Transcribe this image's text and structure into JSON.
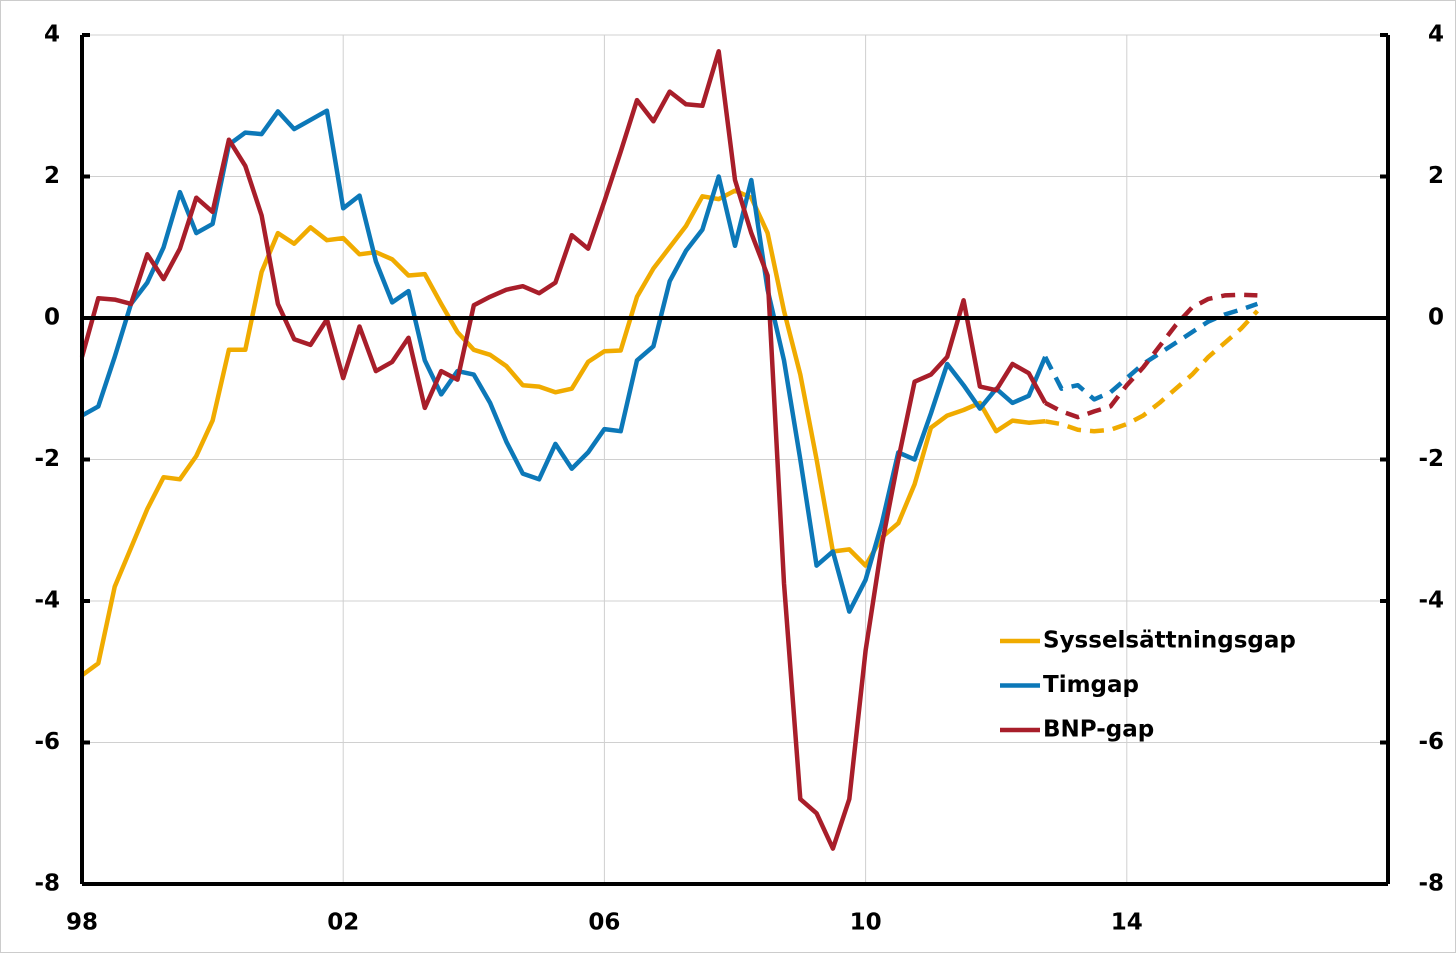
{
  "chart_data": {
    "type": "line",
    "x": [
      1998,
      1998.25,
      1998.5,
      1998.75,
      1999,
      1999.25,
      1999.5,
      1999.75,
      2000,
      2000.25,
      2000.5,
      2000.75,
      2001,
      2001.25,
      2001.5,
      2001.75,
      2002,
      2002.25,
      2002.5,
      2002.75,
      2003,
      2003.25,
      2003.5,
      2003.75,
      2004,
      2004.25,
      2004.5,
      2004.75,
      2005,
      2005.25,
      2005.5,
      2005.75,
      2006,
      2006.25,
      2006.5,
      2006.75,
      2007,
      2007.25,
      2007.5,
      2007.75,
      2008,
      2008.25,
      2008.5,
      2008.75,
      2009,
      2009.25,
      2009.5,
      2009.75,
      2010,
      2010.25,
      2010.5,
      2010.75,
      2011,
      2011.25,
      2011.5,
      2011.75,
      2012,
      2012.25,
      2012.5,
      2012.75,
      2013,
      2013.25,
      2013.5,
      2013.75,
      2014,
      2014.25,
      2014.5,
      2014.75,
      2015,
      2015.25,
      2015.5,
      2015.75,
      2016
    ],
    "series": [
      {
        "name": "Sysselsättningsgap",
        "color": "#f0ab00",
        "values": [
          -5.05,
          -4.88,
          -3.8,
          -3.25,
          -2.7,
          -2.25,
          -2.28,
          -1.95,
          -1.45,
          -0.45,
          -0.45,
          0.65,
          1.2,
          1.05,
          1.28,
          1.1,
          1.13,
          0.9,
          0.93,
          0.83,
          0.6,
          0.62,
          0.2,
          -0.2,
          -0.45,
          -0.52,
          -0.68,
          -0.95,
          -0.97,
          -1.05,
          -1.0,
          -0.62,
          -0.47,
          -0.46,
          0.3,
          0.7,
          1.0,
          1.3,
          1.72,
          1.68,
          1.8,
          1.7,
          1.2,
          0.1,
          -0.8,
          -2.0,
          -3.3,
          -3.27,
          -3.5,
          -3.1,
          -2.9,
          -2.35,
          -1.55,
          -1.38,
          -1.3,
          -1.2,
          -1.6,
          -1.45,
          -1.48,
          -1.46,
          -1.5,
          -1.58,
          -1.6,
          -1.58,
          -1.5,
          -1.38,
          -1.2,
          -1.0,
          -0.8,
          -0.55,
          -0.35,
          -0.15,
          0.1
        ]
      },
      {
        "name": "Timgap",
        "color": "#0c78b8",
        "values": [
          -1.38,
          -1.25,
          -0.55,
          0.2,
          0.5,
          1.0,
          1.78,
          1.2,
          1.33,
          2.45,
          2.62,
          2.6,
          2.92,
          2.67,
          2.8,
          2.93,
          1.55,
          1.73,
          0.8,
          0.22,
          0.38,
          -0.6,
          -1.08,
          -0.75,
          -0.8,
          -1.2,
          -1.75,
          -2.2,
          -2.28,
          -1.78,
          -2.13,
          -1.9,
          -1.57,
          -1.6,
          -0.6,
          -0.4,
          0.52,
          0.95,
          1.25,
          2.0,
          1.02,
          1.95,
          0.4,
          -0.6,
          -2.0,
          -3.5,
          -3.3,
          -4.15,
          -3.7,
          -2.9,
          -1.9,
          -2.0,
          -1.35,
          -0.65,
          -0.95,
          -1.28,
          -1.0,
          -1.2,
          -1.1,
          -0.55,
          -1.0,
          -0.95,
          -1.15,
          -1.05,
          -0.85,
          -0.65,
          -0.5,
          -0.35,
          -0.2,
          -0.05,
          0.05,
          0.12,
          0.2
        ]
      },
      {
        "name": "BNP-gap",
        "color": "#a81e2a",
        "values": [
          -0.55,
          0.28,
          0.26,
          0.2,
          0.9,
          0.55,
          0.98,
          1.7,
          1.5,
          2.52,
          2.15,
          1.45,
          0.2,
          -0.3,
          -0.38,
          -0.02,
          -0.85,
          -0.12,
          -0.75,
          -0.62,
          -0.28,
          -1.27,
          -0.75,
          -0.87,
          0.18,
          0.3,
          0.4,
          0.45,
          0.35,
          0.5,
          1.17,
          0.98,
          1.65,
          2.35,
          3.08,
          2.78,
          3.2,
          3.02,
          3.0,
          3.77,
          1.95,
          1.2,
          0.6,
          -3.75,
          -6.8,
          -7.0,
          -7.5,
          -6.8,
          -4.7,
          -3.2,
          -2.0,
          -0.9,
          -0.8,
          -0.55,
          0.25,
          -0.97,
          -1.02,
          -0.65,
          -0.78,
          -1.2,
          -1.32,
          -1.4,
          -1.32,
          -1.25,
          -0.95,
          -0.7,
          -0.4,
          -0.1,
          0.15,
          0.27,
          0.32,
          0.33,
          0.32
        ]
      }
    ],
    "dashed_from": 2012.75,
    "xlim": [
      1998,
      2018
    ],
    "xticks": [
      {
        "value": 1998,
        "label": "98"
      },
      {
        "value": 2002,
        "label": "02"
      },
      {
        "value": 2006,
        "label": "06"
      },
      {
        "value": 2010,
        "label": "10"
      },
      {
        "value": 2014,
        "label": "14"
      }
    ],
    "ylim": [
      -8,
      4
    ],
    "yticks": [
      4,
      2,
      0,
      -2,
      -4,
      -6,
      -8
    ],
    "y2lim": [
      -8,
      4
    ],
    "y2ticks": [
      4,
      2,
      0,
      -2,
      -4,
      -6,
      -8
    ],
    "grid": true
  }
}
